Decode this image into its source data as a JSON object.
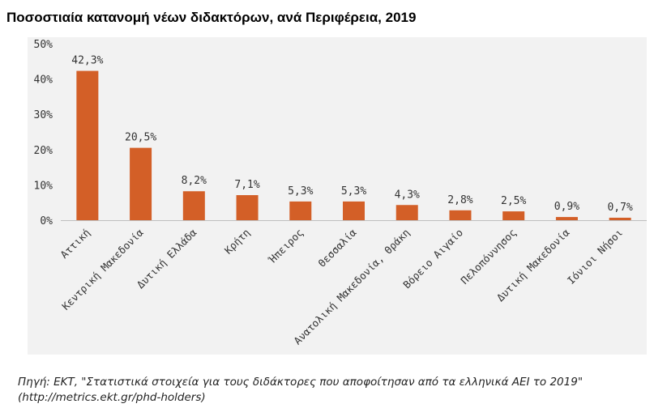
{
  "chart_data": {
    "type": "bar",
    "title": "Ποσοστιαία κατανομή νέων διδακτόρων, ανά Περιφέρεια, 2019",
    "categories": [
      "Αττική",
      "Κεντρική Μακεδονία",
      "Δυτική Ελλάδα",
      "Κρήτη",
      "Ήπειρος",
      "Θεσσαλία",
      "Ανατολική Μακεδονία, Θράκη",
      "Βόρειο Αιγαίο",
      "Πελοπόννησος",
      "Δυτική Μακεδονία",
      "Ιόνιοι Νήσοι"
    ],
    "values": [
      42.3,
      20.5,
      8.2,
      7.1,
      5.3,
      5.3,
      4.3,
      2.8,
      2.5,
      0.9,
      0.7
    ],
    "value_labels": [
      "42,3%",
      "20,5%",
      "8,2%",
      "7,1%",
      "5,3%",
      "5,3%",
      "4,3%",
      "2,8%",
      "2,5%",
      "0,9%",
      "0,7%"
    ],
    "ylim": [
      0,
      50
    ],
    "yticks": [
      0,
      10,
      20,
      30,
      40,
      50
    ],
    "ytick_labels": [
      "0%",
      "10%",
      "20%",
      "30%",
      "40%",
      "50%"
    ],
    "xlabel": "",
    "ylabel": "",
    "grid": false,
    "bar_color": "#d35f27"
  },
  "source": {
    "line1": "Πηγή: ΕΚΤ, \"Στατιστικά στοιχεία για τους διδάκτορες που αποφοίτησαν από τα ελληνικά ΑΕΙ το 2019\"",
    "line2": "(http://metrics.ekt.gr/phd-holders)"
  }
}
